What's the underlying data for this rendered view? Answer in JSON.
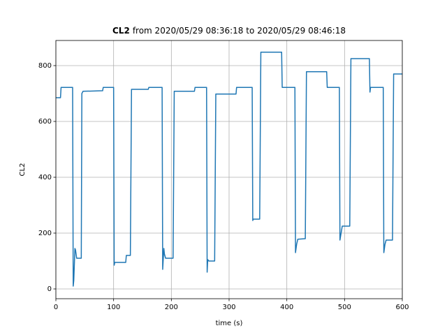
{
  "chart_data": {
    "type": "line",
    "title_bold": "CL2",
    "title": "from 2020/05/29 08:36:18 to 2020/05/29 08:46:18",
    "xlabel": "time (s)",
    "ylabel": "CL2",
    "color": "#1f77b4",
    "grid": true,
    "xlim": [
      0,
      600
    ],
    "xticks": [
      0,
      100,
      200,
      300,
      400,
      500,
      600
    ],
    "ylim": [
      -35,
      890
    ],
    "yticks": [
      0,
      200,
      400,
      600,
      800
    ],
    "x": [
      0,
      8,
      9,
      29,
      30,
      31,
      33,
      34,
      36,
      37,
      44,
      45,
      47,
      81,
      82,
      100,
      101,
      102,
      121,
      122,
      129,
      131,
      160,
      161,
      184,
      185,
      187,
      188,
      190,
      203,
      205,
      240,
      241,
      261,
      262,
      263,
      265,
      275,
      277,
      312,
      313,
      340,
      341,
      342,
      353,
      355,
      391,
      392,
      414,
      415,
      417,
      419,
      432,
      434,
      469,
      470,
      491,
      492,
      494,
      496,
      509,
      511,
      543,
      544,
      545,
      546,
      567,
      568,
      570,
      572,
      583,
      585,
      600
    ],
    "values": [
      685,
      685,
      722,
      722,
      10,
      30,
      145,
      140,
      110,
      110,
      110,
      700,
      708,
      710,
      722,
      722,
      85,
      95,
      95,
      120,
      120,
      715,
      715,
      722,
      722,
      70,
      145,
      125,
      110,
      110,
      708,
      708,
      722,
      722,
      60,
      105,
      100,
      100,
      698,
      698,
      722,
      722,
      245,
      250,
      250,
      848,
      848,
      722,
      722,
      130,
      160,
      178,
      180,
      778,
      778,
      722,
      722,
      175,
      200,
      225,
      225,
      825,
      825,
      705,
      722,
      722,
      722,
      130,
      160,
      175,
      175,
      770,
      770
    ]
  }
}
